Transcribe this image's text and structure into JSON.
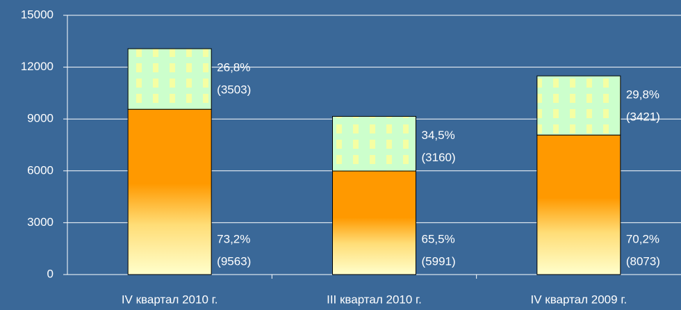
{
  "chart_data": {
    "type": "stacked_bar",
    "categories": [
      "IV квартал 2010 г.",
      "III квартал 2010 г.",
      "IV квартал 2009 г."
    ],
    "series": [
      {
        "color": "#ff9900",
        "values": [
          9563,
          5991,
          8073
        ],
        "value_labels": [
          "(9563)",
          "(5991)",
          "(8073)"
        ],
        "shares": [
          73.2,
          65.5,
          70.2
        ],
        "share_labels": [
          "73,2%",
          "65,5%",
          "70,2%"
        ]
      },
      {
        "color": "#ccffcc",
        "values": [
          3503,
          3160,
          3421
        ],
        "value_labels": [
          "(3503)",
          "(3160)",
          "(3421)"
        ],
        "shares": [
          26.8,
          34.5,
          29.8
        ],
        "share_labels": [
          "26,8%",
          "34,5%",
          "29,8%"
        ]
      }
    ],
    "ylim": [
      0,
      15000
    ],
    "yticks": [
      0,
      3000,
      6000,
      9000,
      12000,
      15000
    ],
    "grid": true
  }
}
